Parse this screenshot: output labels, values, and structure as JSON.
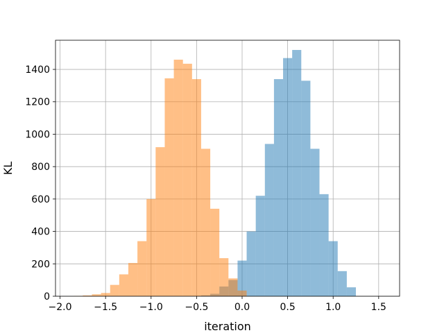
{
  "chart_data": {
    "type": "histogram",
    "xlabel": "iteration",
    "ylabel": "KL",
    "xlim": [
      -2.05,
      1.73
    ],
    "ylim": [
      0,
      1580
    ],
    "x_ticks": [
      -2.0,
      -1.5,
      -1.0,
      -0.5,
      0.0,
      0.5,
      1.0,
      1.5
    ],
    "x_tick_labels": [
      "−2.0",
      "−1.5",
      "−1.0",
      "−0.5",
      "0.0",
      "0.5",
      "1.0",
      "1.5"
    ],
    "y_ticks": [
      0,
      200,
      400,
      600,
      800,
      1000,
      1200,
      1400
    ],
    "y_tick_labels": [
      "0",
      "200",
      "400",
      "600",
      "800",
      "1000",
      "1200",
      "1400"
    ],
    "grid": true,
    "series": [
      {
        "color": "#1f77b4",
        "opacity": 0.5,
        "bin_edges": [
          -0.45,
          -0.35,
          -0.25,
          -0.15,
          -0.05,
          0.05,
          0.15,
          0.25,
          0.35,
          0.45,
          0.55,
          0.65,
          0.75,
          0.85,
          0.95,
          1.05,
          1.15,
          1.25
        ],
        "counts": [
          5,
          15,
          60,
          100,
          220,
          400,
          620,
          940,
          1340,
          1470,
          1520,
          1330,
          910,
          630,
          340,
          155,
          55,
          18
        ]
      },
      {
        "color": "#ff7f0e",
        "opacity": 0.5,
        "bin_edges": [
          -1.85,
          -1.75,
          -1.65,
          -1.55,
          -1.45,
          -1.35,
          -1.25,
          -1.15,
          -1.05,
          -0.95,
          -0.85,
          -0.75,
          -0.65,
          -0.55,
          -0.45,
          -0.35,
          -0.25,
          -0.15,
          -0.05,
          0.05
        ],
        "counts": [
          2,
          5,
          12,
          20,
          70,
          135,
          205,
          340,
          600,
          920,
          1345,
          1460,
          1435,
          1340,
          910,
          540,
          235,
          110,
          35,
          10
        ]
      }
    ]
  }
}
